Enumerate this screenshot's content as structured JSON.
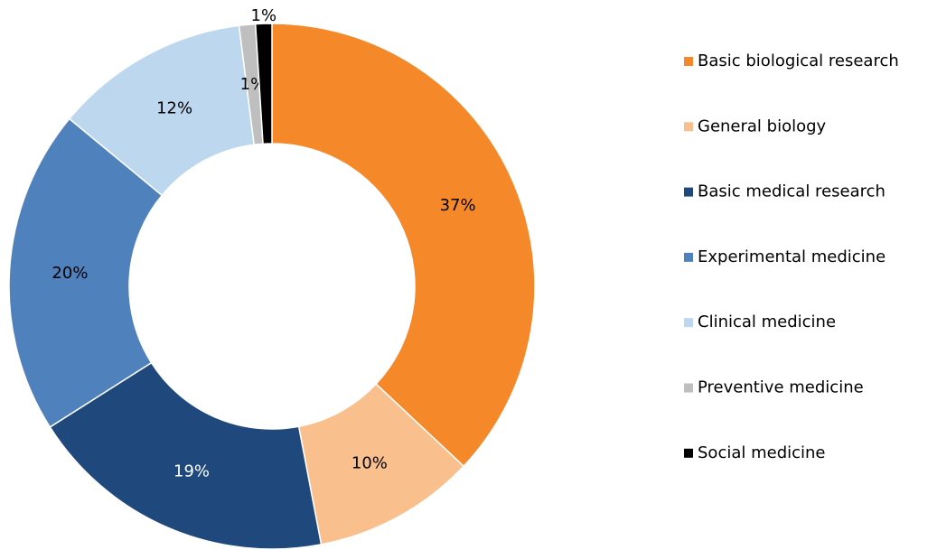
{
  "chart_data": {
    "type": "donut",
    "categories": [
      "Basic biological research",
      "General biology",
      "Basic medical research",
      "Experimental medicine",
      "Clinical medicine",
      "Preventive medicine",
      "Social medicine"
    ],
    "values": [
      37,
      10,
      19,
      20,
      12,
      1,
      1
    ],
    "value_labels": [
      "37%",
      "10%",
      "19%",
      "20%",
      "12%",
      "1%",
      "1%"
    ],
    "colors": [
      "#f58829",
      "#f9c08e",
      "#1f487c",
      "#4f81bd",
      "#bdd7ee",
      "#bfbfbf",
      "#000000"
    ],
    "legend": "right"
  }
}
